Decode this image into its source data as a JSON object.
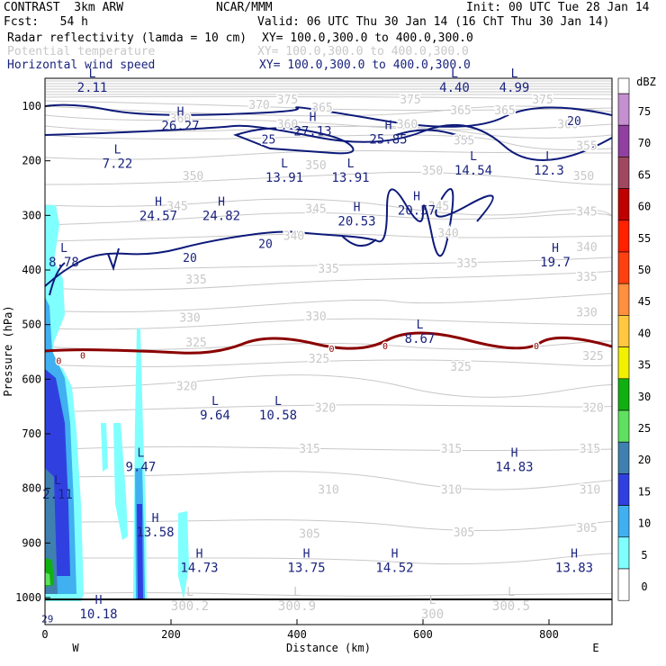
{
  "header": {
    "project": "CONTRAST",
    "model": "3km ARW",
    "center": "NCAR/MMM",
    "init": "Init: 00 UTC Tue 28 Jan 14",
    "fcst_label": "Fcst:",
    "fcst_value": "54 h",
    "valid": "Valid: 06 UTC Thu 30 Jan 14 (16 ChT Thu 30 Jan 14)"
  },
  "fields": [
    {
      "name": "Radar reflectivity (lamda = 10 cm)",
      "xy": "XY= 100.0,300.0 to 400.0,300.0",
      "color": "#000000"
    },
    {
      "name": "Potential temperature",
      "xy": "XY= 100.0,300.0 to 400.0,300.0",
      "color": "#c8c8c8"
    },
    {
      "name": "Horizontal wind speed",
      "xy": "XY= 100.0,300.0 to 400.0,300.0",
      "color": "#1a237e"
    }
  ],
  "chart_data": {
    "type": "contour",
    "xlabel": "Distance (km)",
    "ylabel": "Pressure (hPa)",
    "xlim": [
      0,
      900
    ],
    "ylim": [
      1050,
      60
    ],
    "x_ticks": [
      "0",
      "200",
      "400",
      "600",
      "800"
    ],
    "y_ticks": [
      "100",
      "200",
      "300",
      "400",
      "500",
      "600",
      "700",
      "800",
      "900",
      "1000"
    ],
    "west_label": "W",
    "east_label": "E",
    "theta_labels": [
      {
        "text": "375",
        "x": 385,
        "p": 95
      },
      {
        "text": "375",
        "x": 580,
        "p": 95
      },
      {
        "text": "375",
        "x": 790,
        "p": 95
      },
      {
        "text": "370",
        "x": 340,
        "p": 105
      },
      {
        "text": "365",
        "x": 440,
        "p": 110
      },
      {
        "text": "365",
        "x": 660,
        "p": 115
      },
      {
        "text": "365",
        "x": 730,
        "p": 115
      },
      {
        "text": "360",
        "x": 215,
        "p": 130
      },
      {
        "text": "360",
        "x": 385,
        "p": 140
      },
      {
        "text": "360",
        "x": 575,
        "p": 140
      },
      {
        "text": "360",
        "x": 830,
        "p": 140
      },
      {
        "text": "355",
        "x": 665,
        "p": 170
      },
      {
        "text": "355",
        "x": 860,
        "p": 180
      },
      {
        "text": "350",
        "x": 235,
        "p": 235
      },
      {
        "text": "350",
        "x": 430,
        "p": 215
      },
      {
        "text": "350",
        "x": 615,
        "p": 225
      },
      {
        "text": "350",
        "x": 855,
        "p": 235
      },
      {
        "text": "345",
        "x": 210,
        "p": 290
      },
      {
        "text": "345",
        "x": 430,
        "p": 295
      },
      {
        "text": "345",
        "x": 625,
        "p": 290
      },
      {
        "text": "345",
        "x": 860,
        "p": 300
      },
      {
        "text": "340",
        "x": 395,
        "p": 345
      },
      {
        "text": "340",
        "x": 640,
        "p": 340
      },
      {
        "text": "340",
        "x": 860,
        "p": 365
      },
      {
        "text": "335",
        "x": 240,
        "p": 425
      },
      {
        "text": "335",
        "x": 450,
        "p": 405
      },
      {
        "text": "335",
        "x": 670,
        "p": 395
      },
      {
        "text": "335",
        "x": 860,
        "p": 420
      },
      {
        "text": "330",
        "x": 230,
        "p": 495
      },
      {
        "text": "330",
        "x": 430,
        "p": 492
      },
      {
        "text": "330",
        "x": 860,
        "p": 485
      },
      {
        "text": "325",
        "x": 240,
        "p": 540
      },
      {
        "text": "325",
        "x": 435,
        "p": 570
      },
      {
        "text": "325",
        "x": 660,
        "p": 585
      },
      {
        "text": "325",
        "x": 870,
        "p": 565
      },
      {
        "text": "320",
        "x": 225,
        "p": 620
      },
      {
        "text": "320",
        "x": 445,
        "p": 660
      },
      {
        "text": "320",
        "x": 870,
        "p": 660
      },
      {
        "text": "315",
        "x": 420,
        "p": 735
      },
      {
        "text": "315",
        "x": 645,
        "p": 735
      },
      {
        "text": "315",
        "x": 865,
        "p": 735
      },
      {
        "text": "310",
        "x": 450,
        "p": 810
      },
      {
        "text": "310",
        "x": 645,
        "p": 810
      },
      {
        "text": "310",
        "x": 865,
        "p": 810
      },
      {
        "text": "305",
        "x": 420,
        "p": 890
      },
      {
        "text": "305",
        "x": 665,
        "p": 888
      },
      {
        "text": "305",
        "x": 860,
        "p": 880
      }
    ],
    "wind_labels": [
      {
        "text": "20",
        "x": 840,
        "p": 135
      },
      {
        "text": "25",
        "x": 355,
        "p": 168
      },
      {
        "text": "20",
        "x": 350,
        "p": 360
      },
      {
        "text": "20",
        "x": 230,
        "p": 385
      }
    ],
    "zero_labels": [
      {
        "text": "0",
        "x": 22,
        "p": 572
      },
      {
        "text": "0",
        "x": 60,
        "p": 562
      },
      {
        "text": "0",
        "x": 455,
        "p": 550
      },
      {
        "text": "0",
        "x": 540,
        "p": 545
      },
      {
        "text": "0",
        "x": 780,
        "p": 545
      }
    ],
    "hl_marks": [
      {
        "letter": "L",
        "value": "2.11",
        "x": 75,
        "p": 70,
        "color": "#1a237e"
      },
      {
        "letter": "L",
        "value": "4.40",
        "x": 650,
        "p": 70,
        "color": "#1a237e"
      },
      {
        "letter": "L",
        "value": "4.99",
        "x": 745,
        "p": 70,
        "color": "#1a237e"
      },
      {
        "letter": "H",
        "value": "26.27",
        "x": 215,
        "p": 140,
        "color": "#1a237e"
      },
      {
        "letter": "H",
        "value": "27.13",
        "x": 425,
        "p": 150,
        "color": "#1a237e"
      },
      {
        "letter": "H",
        "value": "25.85",
        "x": 545,
        "p": 165,
        "color": "#1a237e"
      },
      {
        "letter": "L",
        "value": "7.22",
        "x": 115,
        "p": 210,
        "color": "#1a237e"
      },
      {
        "letter": "L",
        "value": "13.91",
        "x": 380,
        "p": 235,
        "color": "#1a237e"
      },
      {
        "letter": "L",
        "value": "13.91",
        "x": 485,
        "p": 235,
        "color": "#1a237e"
      },
      {
        "letter": "L",
        "value": "14.54",
        "x": 680,
        "p": 222,
        "color": "#1a237e"
      },
      {
        "letter": "L",
        "value": "12.3",
        "x": 800,
        "p": 222,
        "color": "#1a237e"
      },
      {
        "letter": "H",
        "value": "20.57",
        "x": 590,
        "p": 295,
        "color": "#1a237e"
      },
      {
        "letter": "H",
        "value": "24.57",
        "x": 180,
        "p": 305,
        "color": "#1a237e"
      },
      {
        "letter": "H",
        "value": "24.82",
        "x": 280,
        "p": 305,
        "color": "#1a237e"
      },
      {
        "letter": "H",
        "value": "20.53",
        "x": 495,
        "p": 315,
        "color": "#1a237e"
      },
      {
        "letter": "L",
        "value": "8.78",
        "x": 30,
        "p": 390,
        "color": "#1a237e"
      },
      {
        "letter": "H",
        "value": "19.7",
        "x": 810,
        "p": 390,
        "color": "#1a237e"
      },
      {
        "letter": "L",
        "value": "8.67",
        "x": 595,
        "p": 530,
        "color": "#1a237e"
      },
      {
        "letter": "L",
        "value": "9.64",
        "x": 270,
        "p": 670,
        "color": "#1a237e"
      },
      {
        "letter": "L",
        "value": "10.58",
        "x": 370,
        "p": 670,
        "color": "#1a237e"
      },
      {
        "letter": "L",
        "value": "9.47",
        "x": 152,
        "p": 765,
        "color": "#1a237e"
      },
      {
        "letter": "H",
        "value": "14.83",
        "x": 745,
        "p": 765,
        "color": "#1a237e"
      },
      {
        "letter": "L",
        "value": "2.11",
        "x": 20,
        "p": 815,
        "color": "#1a237e"
      },
      {
        "letter": "H",
        "value": "13.58",
        "x": 175,
        "p": 885,
        "color": "#1a237e"
      },
      {
        "letter": "H",
        "value": "14.73",
        "x": 245,
        "p": 950,
        "color": "#1a237e"
      },
      {
        "letter": "H",
        "value": "13.75",
        "x": 415,
        "p": 950,
        "color": "#1a237e"
      },
      {
        "letter": "H",
        "value": "14.52",
        "x": 555,
        "p": 950,
        "color": "#1a237e"
      },
      {
        "letter": "H",
        "value": "13.83",
        "x": 840,
        "p": 950,
        "color": "#1a237e"
      },
      {
        "letter": "H",
        "value": "10.18",
        "x": 85,
        "p": 1035,
        "color": "#1a237e"
      },
      {
        "letter": "L",
        "value": "300.2",
        "x": 230,
        "p": 1020,
        "color": "#c8c8c8"
      },
      {
        "letter": "L",
        "value": "300.9",
        "x": 400,
        "p": 1020,
        "color": "#c8c8c8"
      },
      {
        "letter": "L",
        "value": "300",
        "x": 615,
        "p": 1035,
        "color": "#c8c8c8"
      },
      {
        "letter": "L",
        "value": "300.5",
        "x": 740,
        "p": 1020,
        "color": "#c8c8c8"
      }
    ],
    "misc_labels": [
      {
        "text": "29",
        "x": 4,
        "p": 1045,
        "color": "#1a237e"
      }
    ],
    "colorbar": {
      "unit": "dBZ",
      "levels": [
        {
          "label": "75",
          "color": "#c490d0"
        },
        {
          "label": "70",
          "color": "#9040a0"
        },
        {
          "label": "65",
          "color": "#a04860"
        },
        {
          "label": "60",
          "color": "#c00000"
        },
        {
          "label": "55",
          "color": "#ff2000"
        },
        {
          "label": "50",
          "color": "#ff4010"
        },
        {
          "label": "45",
          "color": "#ff9040"
        },
        {
          "label": "40",
          "color": "#ffc840"
        },
        {
          "label": "35",
          "color": "#f0f000"
        },
        {
          "label": "30",
          "color": "#10b010"
        },
        {
          "label": "25",
          "color": "#60e060"
        },
        {
          "label": "20",
          "color": "#4080b0"
        },
        {
          "label": "15",
          "color": "#3040e0"
        },
        {
          "label": "10",
          "color": "#40b0f0"
        },
        {
          "label": "5",
          "color": "#80ffff"
        },
        {
          "label": "0",
          "color": "#ffffff"
        }
      ]
    }
  }
}
